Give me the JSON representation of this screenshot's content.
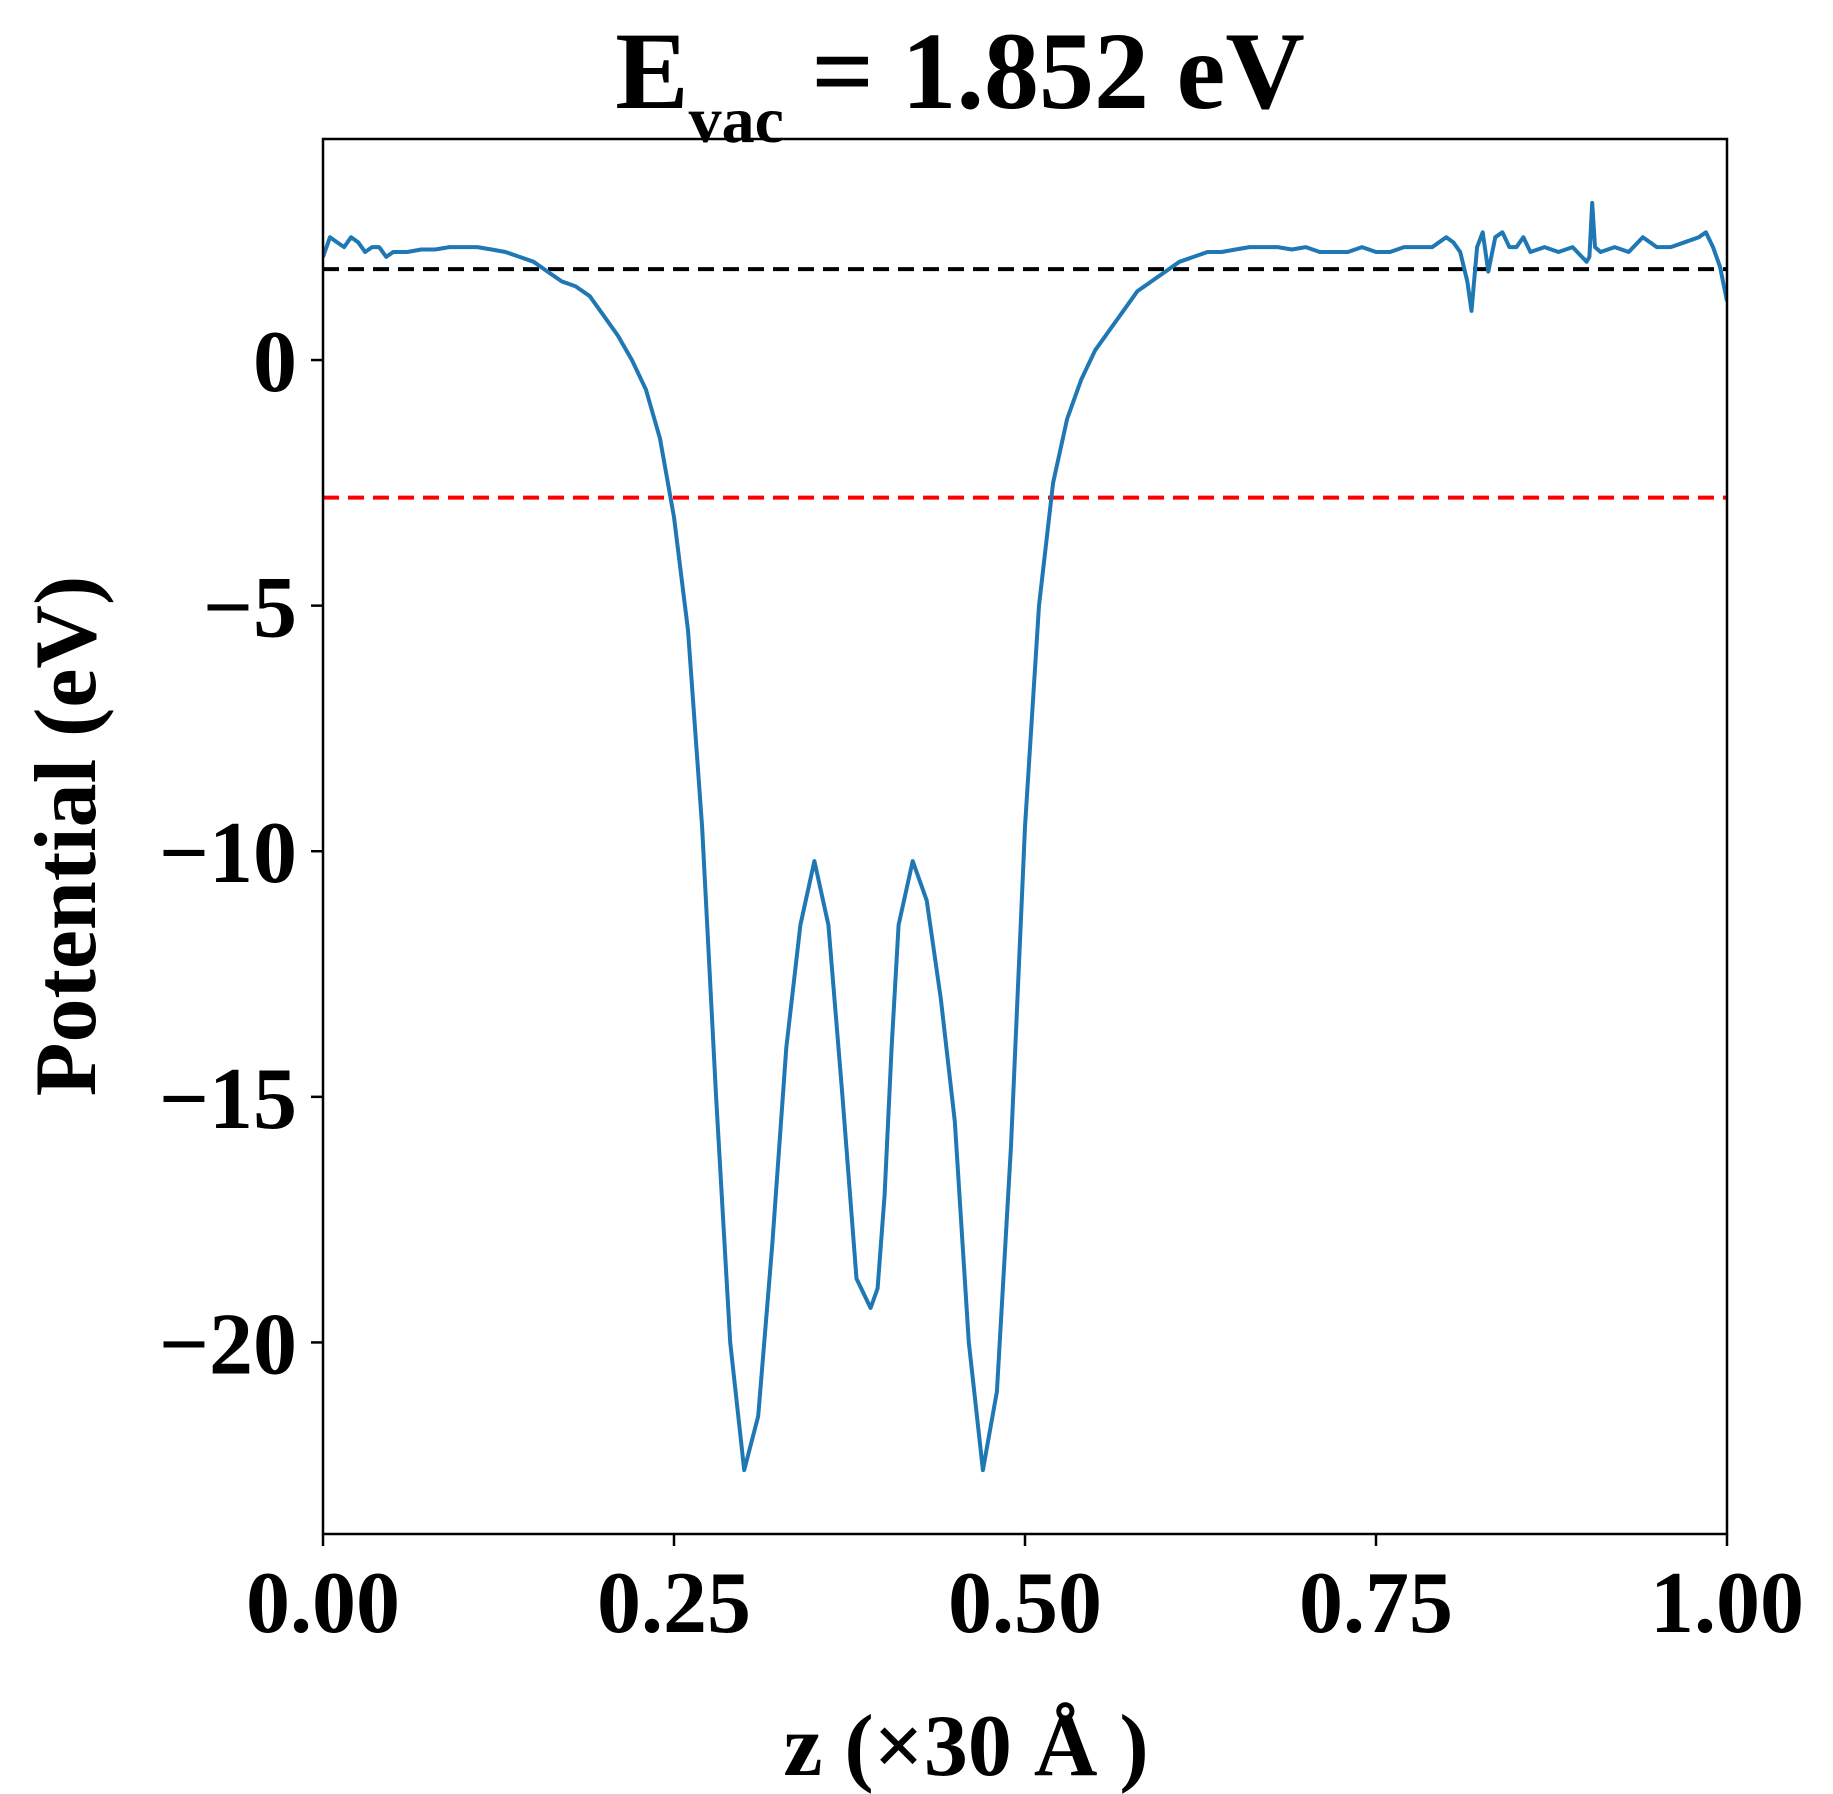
{
  "chart_data": {
    "type": "line",
    "title": {
      "main": "E",
      "subscript": "vac",
      "rest": " = 1.852 eV"
    },
    "xlabel": "z (×30 Å )",
    "ylabel": "Potential (eV)",
    "xlim": [
      0.0,
      1.0
    ],
    "ylim": [
      -23.9,
      4.5
    ],
    "x_ticks": [
      0.0,
      0.25,
      0.5,
      0.75,
      1.0
    ],
    "x_tick_labels": [
      "0.00",
      "0.25",
      "0.50",
      "0.75",
      "1.00"
    ],
    "y_ticks": [
      0,
      -5,
      -10,
      -15,
      -20
    ],
    "y_tick_labels": [
      "0",
      "−5",
      "−10",
      "−15",
      "−20"
    ],
    "grid": false,
    "series": [
      {
        "color": "#1f77b4",
        "x": [
          0.0,
          0.005,
          0.01,
          0.015,
          0.02,
          0.025,
          0.03,
          0.035,
          0.04,
          0.045,
          0.05,
          0.06,
          0.07,
          0.08,
          0.09,
          0.1,
          0.11,
          0.12,
          0.13,
          0.14,
          0.15,
          0.16,
          0.17,
          0.18,
          0.19,
          0.2,
          0.21,
          0.22,
          0.23,
          0.24,
          0.25,
          0.26,
          0.27,
          0.28,
          0.29,
          0.3,
          0.31,
          0.32,
          0.33,
          0.34,
          0.35,
          0.36,
          0.37,
          0.38,
          0.39,
          0.395,
          0.4,
          0.405,
          0.41,
          0.42,
          0.43,
          0.44,
          0.45,
          0.46,
          0.47,
          0.48,
          0.49,
          0.5,
          0.51,
          0.52,
          0.53,
          0.54,
          0.55,
          0.56,
          0.57,
          0.58,
          0.59,
          0.6,
          0.61,
          0.62,
          0.63,
          0.64,
          0.65,
          0.66,
          0.67,
          0.68,
          0.69,
          0.7,
          0.71,
          0.72,
          0.73,
          0.74,
          0.75,
          0.76,
          0.77,
          0.78,
          0.79,
          0.8,
          0.805,
          0.81,
          0.815,
          0.818,
          0.822,
          0.826,
          0.83,
          0.835,
          0.84,
          0.845,
          0.85,
          0.855,
          0.86,
          0.87,
          0.88,
          0.89,
          0.9,
          0.902,
          0.904,
          0.906,
          0.91,
          0.92,
          0.93,
          0.94,
          0.95,
          0.96,
          0.97,
          0.98,
          0.985,
          0.99,
          0.995,
          1.0
        ],
        "y": [
          2.1,
          2.5,
          2.4,
          2.3,
          2.5,
          2.4,
          2.2,
          2.3,
          2.3,
          2.1,
          2.2,
          2.2,
          2.25,
          2.25,
          2.3,
          2.3,
          2.3,
          2.25,
          2.2,
          2.1,
          2.0,
          1.8,
          1.6,
          1.5,
          1.3,
          0.9,
          0.5,
          0.0,
          -0.6,
          -1.6,
          -3.2,
          -5.5,
          -9.5,
          -15.0,
          -20.0,
          -22.6,
          -21.5,
          -18.0,
          -14.0,
          -11.5,
          -10.2,
          -11.5,
          -15.0,
          -18.7,
          -19.3,
          -18.9,
          -17.0,
          -14.0,
          -11.5,
          -10.2,
          -11.0,
          -13.0,
          -15.5,
          -20.0,
          -22.6,
          -21.0,
          -16.0,
          -9.5,
          -5.0,
          -2.5,
          -1.2,
          -0.4,
          0.2,
          0.6,
          1.0,
          1.4,
          1.6,
          1.8,
          2.0,
          2.1,
          2.2,
          2.2,
          2.25,
          2.3,
          2.3,
          2.3,
          2.25,
          2.3,
          2.2,
          2.2,
          2.2,
          2.3,
          2.2,
          2.2,
          2.3,
          2.3,
          2.3,
          2.5,
          2.4,
          2.2,
          1.6,
          1.0,
          2.3,
          2.6,
          1.8,
          2.5,
          2.6,
          2.3,
          2.3,
          2.5,
          2.2,
          2.3,
          2.2,
          2.3,
          2.0,
          2.1,
          3.2,
          2.3,
          2.2,
          2.3,
          2.2,
          2.5,
          2.3,
          2.3,
          2.4,
          2.5,
          2.6,
          2.3,
          1.9,
          1.2
        ]
      }
    ],
    "hlines": [
      {
        "y": 1.852,
        "color": "#000000",
        "style": "dashed"
      },
      {
        "y": -2.8,
        "color": "#ff0000",
        "style": "dashed"
      }
    ]
  }
}
